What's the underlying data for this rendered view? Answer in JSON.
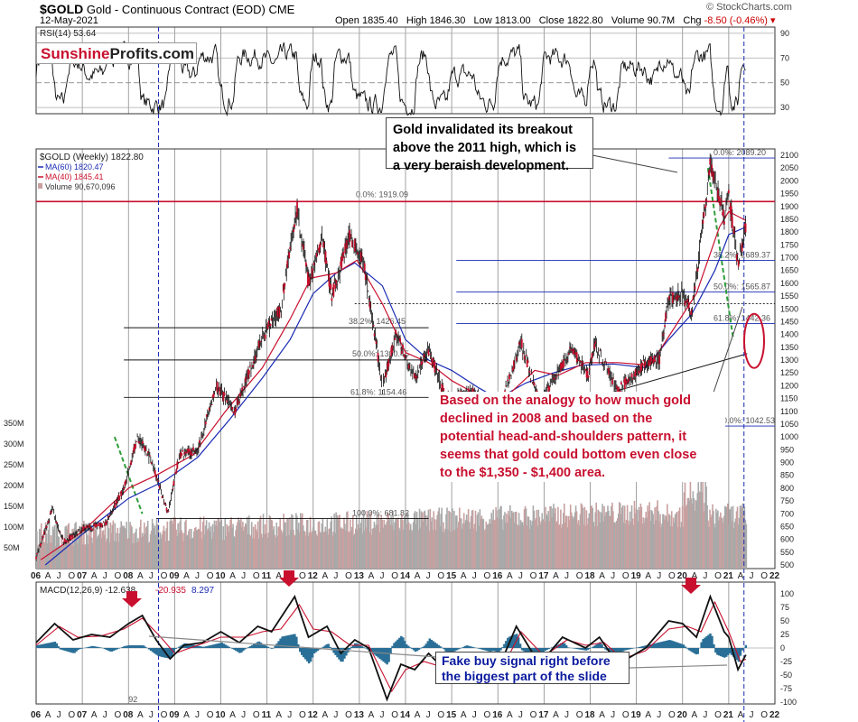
{
  "header": {
    "symbol": "$GOLD",
    "name": "Gold - Continuous Contract (EOD)",
    "exchange": "CME",
    "date": "12-May-2021",
    "open_label": "Open",
    "open": "1835.40",
    "high_label": "High",
    "high": "1846.30",
    "low_label": "Low",
    "low": "1813.00",
    "close_label": "Close",
    "close": "1822.80",
    "volume_label": "Volume",
    "volume": "90.7M",
    "chg_label": "Chg",
    "chg": "-8.50 (-0.46%)",
    "brand": "© StockCharts.com"
  },
  "logo": {
    "part1": "Sunshine",
    "part2": "Profits.com"
  },
  "annotations": {
    "top_box": [
      "Gold invalidated its breakout",
      "above the 2011 high, which is",
      "a very beraish development."
    ],
    "middle": [
      "Based on the analogy to how much gold",
      "declined in 2008 and based on the",
      "potential head-and-shoulders pattern, it",
      "seems that gold could bottom even close",
      "to the $1,350 - $1,400 area."
    ],
    "bottom_box": [
      "Fake buy signal right before",
      "the biggest part of the slide"
    ],
    "small_92": "92"
  },
  "colors": {
    "price": "#111111",
    "ma60": "#1a2bb3",
    "ma40": "#c8102e",
    "red_line": "#c8102e",
    "fib": "#1a2bb3",
    "volume": "#c9a0a0",
    "macd_hist": "#2a6f97",
    "green": "#2e9d3a"
  },
  "chart_data": [
    {
      "type": "line",
      "title": "RSI(14) 53.64",
      "series": [
        {
          "name": "RSI(14)",
          "last": 53.64
        }
      ],
      "y_ticks": [
        30,
        50,
        70,
        90
      ]
    },
    {
      "type": "line",
      "title": "$GOLD (Weekly) 1822.80",
      "legend": [
        "$GOLD (Weekly) 1822.80",
        "MA(60) 1820.47",
        "MA(40) 1845.41",
        "Volume 90,670,096"
      ],
      "x_ticks": [
        "06",
        "A",
        "J",
        "O",
        "07",
        "A",
        "J",
        "O",
        "08",
        "A",
        "J",
        "O",
        "09",
        "A",
        "J",
        "O",
        "10",
        "A",
        "J",
        "O",
        "11",
        "A",
        "J",
        "O",
        "12",
        "A",
        "J",
        "O",
        "13",
        "A",
        "J",
        "O",
        "14",
        "A",
        "J",
        "O",
        "15",
        "A",
        "J",
        "O",
        "16",
        "A",
        "J",
        "O",
        "17",
        "A",
        "J",
        "O",
        "18",
        "A",
        "J",
        "O",
        "19",
        "A",
        "J",
        "O",
        "20",
        "A",
        "J",
        "O",
        "21",
        "A",
        "J",
        "O",
        "22"
      ],
      "y_ticks": [
        500,
        550,
        600,
        650,
        700,
        750,
        800,
        850,
        900,
        950,
        1000,
        1050,
        1100,
        1150,
        1200,
        1250,
        1300,
        1350,
        1400,
        1450,
        1500,
        1550,
        1600,
        1650,
        1700,
        1750,
        1800,
        1850,
        1900,
        1950,
        2000,
        2050,
        2100
      ],
      "volume_ticks": [
        "50M",
        "100M",
        "150M",
        "200M",
        "250M",
        "300M",
        "350M"
      ],
      "price_path": [
        [
          2006.0,
          530
        ],
        [
          2006.35,
          720
        ],
        [
          2006.6,
          590
        ],
        [
          2007.0,
          640
        ],
        [
          2007.5,
          660
        ],
        [
          2007.9,
          800
        ],
        [
          2008.2,
          1000
        ],
        [
          2008.5,
          910
        ],
        [
          2008.85,
          700
        ],
        [
          2009.1,
          930
        ],
        [
          2009.5,
          950
        ],
        [
          2009.9,
          1200
        ],
        [
          2010.3,
          1100
        ],
        [
          2010.9,
          1390
        ],
        [
          2011.3,
          1500
        ],
        [
          2011.65,
          1900
        ],
        [
          2011.9,
          1600
        ],
        [
          2012.2,
          1780
        ],
        [
          2012.4,
          1550
        ],
        [
          2012.8,
          1790
        ],
        [
          2013.1,
          1670
        ],
        [
          2013.5,
          1200
        ],
        [
          2013.8,
          1400
        ],
        [
          2014.2,
          1230
        ],
        [
          2014.5,
          1340
        ],
        [
          2014.9,
          1140
        ],
        [
          2015.5,
          1180
        ],
        [
          2015.95,
          1050
        ],
        [
          2016.5,
          1370
        ],
        [
          2016.9,
          1130
        ],
        [
          2017.6,
          1350
        ],
        [
          2017.95,
          1240
        ],
        [
          2018.1,
          1360
        ],
        [
          2018.6,
          1180
        ],
        [
          2019.2,
          1290
        ],
        [
          2019.5,
          1300
        ],
        [
          2019.7,
          1540
        ],
        [
          2020.0,
          1560
        ],
        [
          2020.2,
          1480
        ],
        [
          2020.6,
          2070
        ],
        [
          2020.9,
          1860
        ],
        [
          2021.0,
          1950
        ],
        [
          2021.2,
          1680
        ],
        [
          2021.37,
          1823
        ]
      ],
      "ma60_path": [
        [
          2006.2,
          500
        ],
        [
          2007.0,
          620
        ],
        [
          2008.0,
          760
        ],
        [
          2008.8,
          830
        ],
        [
          2009.5,
          920
        ],
        [
          2010.2,
          1070
        ],
        [
          2010.9,
          1230
        ],
        [
          2011.5,
          1380
        ],
        [
          2012.0,
          1560
        ],
        [
          2012.5,
          1640
        ],
        [
          2012.9,
          1680
        ],
        [
          2013.5,
          1590
        ],
        [
          2014.0,
          1380
        ],
        [
          2014.5,
          1300
        ],
        [
          2015.0,
          1260
        ],
        [
          2015.6,
          1190
        ],
        [
          2016.0,
          1150
        ],
        [
          2016.6,
          1210
        ],
        [
          2017.2,
          1250
        ],
        [
          2017.8,
          1280
        ],
        [
          2018.5,
          1285
        ],
        [
          2019.2,
          1270
        ],
        [
          2019.7,
          1380
        ],
        [
          2020.2,
          1480
        ],
        [
          2020.7,
          1650
        ],
        [
          2021.0,
          1790
        ],
        [
          2021.37,
          1820
        ]
      ],
      "ma40_path": [
        [
          2006.1,
          520
        ],
        [
          2007.0,
          630
        ],
        [
          2008.0,
          800
        ],
        [
          2008.6,
          850
        ],
        [
          2009.4,
          930
        ],
        [
          2010.1,
          1100
        ],
        [
          2010.9,
          1270
        ],
        [
          2011.5,
          1460
        ],
        [
          2011.95,
          1620
        ],
        [
          2012.5,
          1640
        ],
        [
          2012.95,
          1690
        ],
        [
          2013.5,
          1520
        ],
        [
          2014.0,
          1330
        ],
        [
          2014.5,
          1290
        ],
        [
          2015.0,
          1220
        ],
        [
          2015.6,
          1160
        ],
        [
          2016.2,
          1160
        ],
        [
          2016.8,
          1260
        ],
        [
          2017.3,
          1240
        ],
        [
          2017.9,
          1290
        ],
        [
          2018.6,
          1290
        ],
        [
          2019.3,
          1280
        ],
        [
          2019.8,
          1420
        ],
        [
          2020.3,
          1560
        ],
        [
          2020.8,
          1820
        ],
        [
          2021.0,
          1880
        ],
        [
          2021.37,
          1845
        ]
      ],
      "red_horizontal": 1919.09,
      "fib_left": [
        {
          "label": "0.0%: 1919.09",
          "value": 1919.09
        },
        {
          "label": "38.2%: 1426.45",
          "value": 1426.45
        },
        {
          "label": "50.0%: 1300.45",
          "value": 1300.45
        },
        {
          "label": "61.8%: 1154.46",
          "value": 1154.46
        },
        {
          "label": "100.0%: 681.82",
          "value": 681.82
        }
      ],
      "fib_right": [
        {
          "label": "0.0%: 2089.20",
          "value": 2089.2
        },
        {
          "label": "38.2%: 1689.37",
          "value": 1689.37
        },
        {
          "label": "50.0%: 1565.87",
          "value": 1565.87
        },
        {
          "label": "61.8%: 1442.36",
          "value": 1442.36
        },
        {
          "label": "100.0%: 1042.53",
          "value": 1042.53
        }
      ]
    },
    {
      "type": "line",
      "title": "MACD(12,26,9) -12.638, -20.935, 8.297",
      "legend": [
        "MACD(12,26,9) -12.638",
        "-20.935",
        "8.297"
      ],
      "y_ticks": [
        -100,
        -75,
        -50,
        -25,
        0,
        25,
        50,
        75,
        100
      ],
      "x_ticks": [
        "06",
        "A",
        "J",
        "O",
        "07",
        "A",
        "J",
        "O",
        "08",
        "A",
        "J",
        "O",
        "09",
        "A",
        "J",
        "O",
        "10",
        "A",
        "J",
        "O",
        "11",
        "A",
        "J",
        "O",
        "12",
        "A",
        "J",
        "O",
        "13",
        "A",
        "J",
        "O",
        "14",
        "A",
        "J",
        "O",
        "15",
        "A",
        "J",
        "O",
        "16",
        "A",
        "J",
        "O",
        "17",
        "A",
        "J",
        "O",
        "18",
        "A",
        "J",
        "O",
        "19",
        "A",
        "J",
        "O",
        "20",
        "A",
        "J",
        "O",
        "21",
        "A",
        "J",
        "O",
        "22"
      ],
      "macd_path": [
        [
          2006.0,
          10
        ],
        [
          2006.4,
          45
        ],
        [
          2006.8,
          15
        ],
        [
          2007.2,
          25
        ],
        [
          2007.6,
          20
        ],
        [
          2008.0,
          45
        ],
        [
          2008.3,
          60
        ],
        [
          2008.6,
          15
        ],
        [
          2008.9,
          -20
        ],
        [
          2009.2,
          5
        ],
        [
          2009.6,
          10
        ],
        [
          2010.0,
          30
        ],
        [
          2010.4,
          10
        ],
        [
          2010.8,
          40
        ],
        [
          2011.1,
          30
        ],
        [
          2011.6,
          95
        ],
        [
          2011.9,
          20
        ],
        [
          2012.3,
          40
        ],
        [
          2012.6,
          -10
        ],
        [
          2012.9,
          15
        ],
        [
          2013.2,
          0
        ],
        [
          2013.6,
          -95
        ],
        [
          2013.9,
          -30
        ],
        [
          2014.2,
          -40
        ],
        [
          2014.5,
          -10
        ],
        [
          2014.9,
          -45
        ],
        [
          2015.3,
          -20
        ],
        [
          2015.8,
          -40
        ],
        [
          2016.0,
          -40
        ],
        [
          2016.4,
          40
        ],
        [
          2016.9,
          -30
        ],
        [
          2017.4,
          20
        ],
        [
          2017.9,
          0
        ],
        [
          2018.2,
          20
        ],
        [
          2018.6,
          -30
        ],
        [
          2019.2,
          0
        ],
        [
          2019.7,
          50
        ],
        [
          2020.0,
          45
        ],
        [
          2020.3,
          20
        ],
        [
          2020.6,
          95
        ],
        [
          2020.9,
          30
        ],
        [
          2021.0,
          20
        ],
        [
          2021.2,
          -40
        ],
        [
          2021.37,
          -12.6
        ]
      ],
      "signal_path": [
        [
          2006.0,
          5
        ],
        [
          2006.5,
          40
        ],
        [
          2006.9,
          20
        ],
        [
          2007.4,
          22
        ],
        [
          2007.9,
          35
        ],
        [
          2008.3,
          55
        ],
        [
          2008.7,
          20
        ],
        [
          2009.0,
          -10
        ],
        [
          2009.5,
          5
        ],
        [
          2010.0,
          20
        ],
        [
          2010.5,
          20
        ],
        [
          2010.9,
          30
        ],
        [
          2011.3,
          35
        ],
        [
          2011.7,
          80
        ],
        [
          2012.0,
          35
        ],
        [
          2012.4,
          30
        ],
        [
          2012.8,
          5
        ],
        [
          2013.2,
          5
        ],
        [
          2013.7,
          -80
        ],
        [
          2014.0,
          -40
        ],
        [
          2014.4,
          -25
        ],
        [
          2014.8,
          -35
        ],
        [
          2015.3,
          -25
        ],
        [
          2015.9,
          -35
        ],
        [
          2016.2,
          -20
        ],
        [
          2016.5,
          30
        ],
        [
          2017.0,
          -15
        ],
        [
          2017.5,
          15
        ],
        [
          2017.9,
          5
        ],
        [
          2018.3,
          10
        ],
        [
          2018.7,
          -20
        ],
        [
          2019.2,
          -5
        ],
        [
          2019.7,
          35
        ],
        [
          2020.1,
          40
        ],
        [
          2020.4,
          30
        ],
        [
          2020.7,
          85
        ],
        [
          2021.0,
          30
        ],
        [
          2021.25,
          -25
        ],
        [
          2021.37,
          -20.9
        ]
      ],
      "hist_last": 8.297
    }
  ]
}
